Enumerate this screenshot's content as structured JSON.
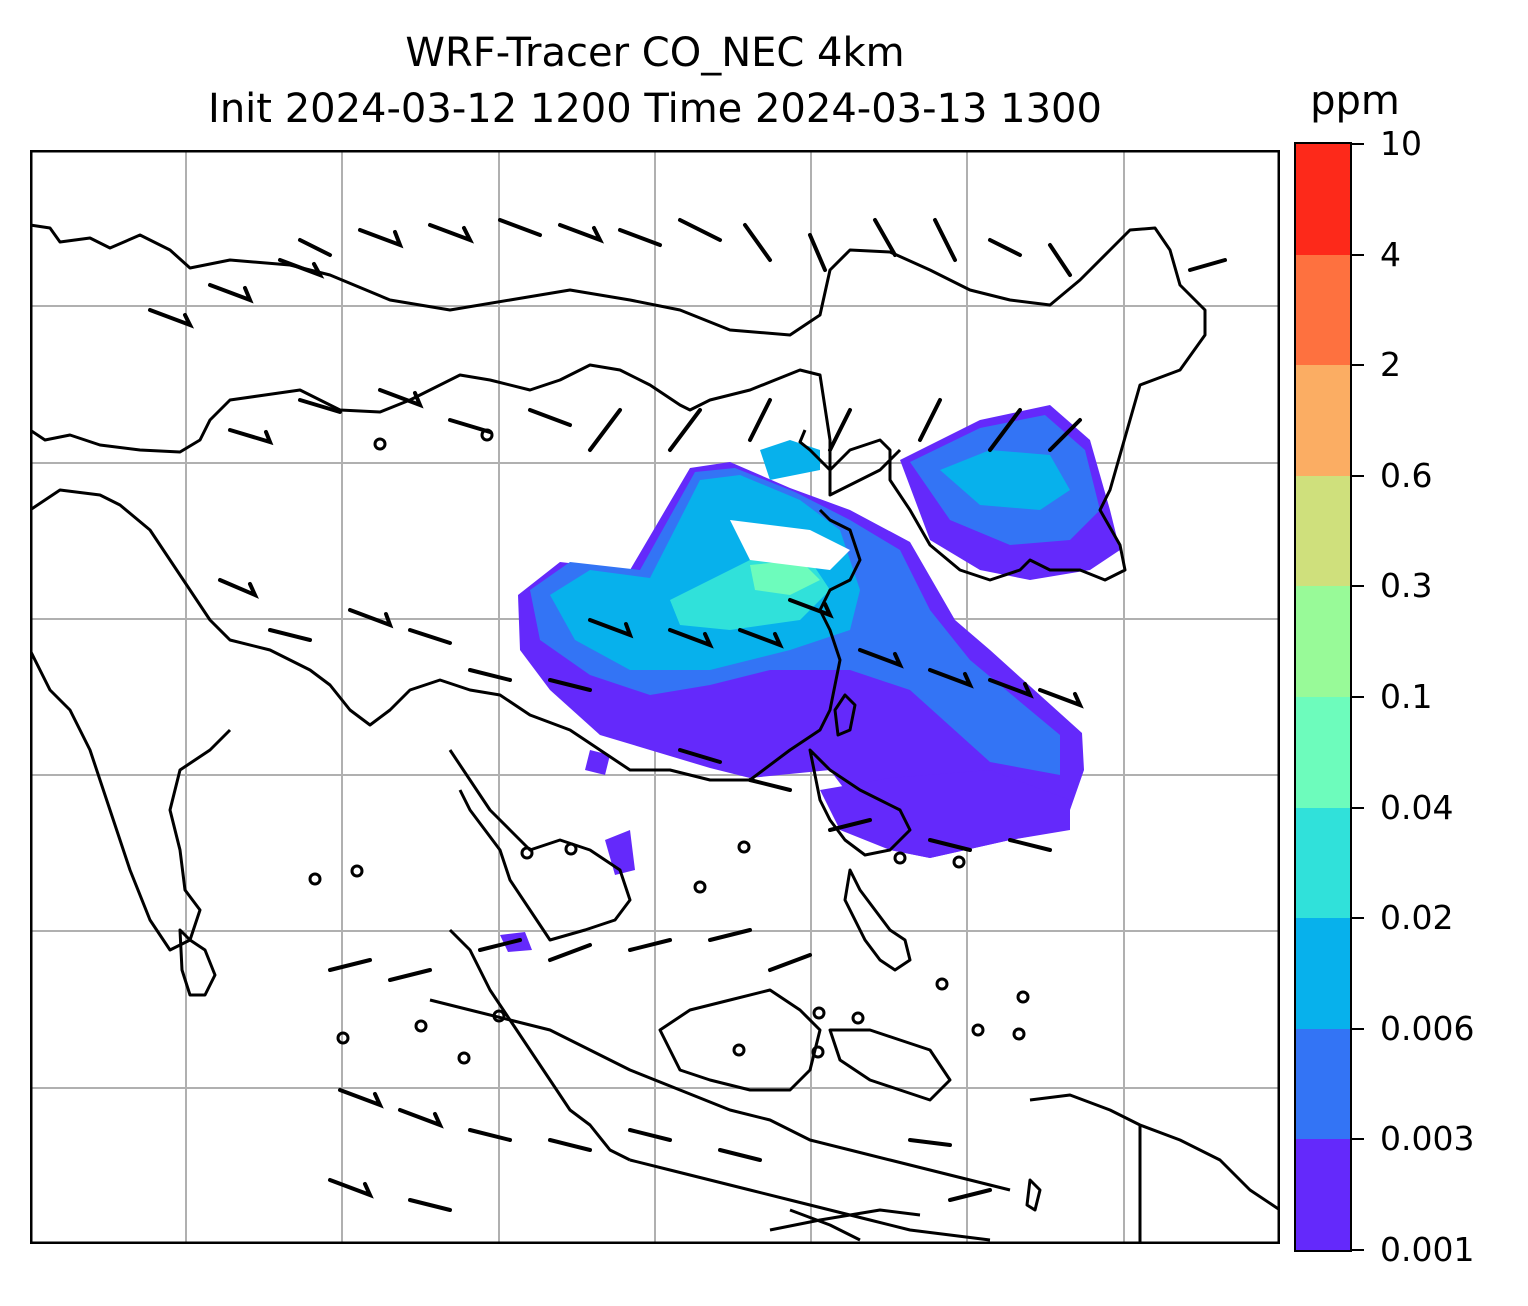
{
  "title_line1": "WRF-Tracer CO_NEC 4km",
  "title_line2": "Init 2024-03-12 1200 Time 2024-03-13 1300",
  "colorbar": {
    "unit": "ppm",
    "levels": [
      "0.001",
      "0.003",
      "0.006",
      "0.02",
      "0.04",
      "0.1",
      "0.3",
      "0.6",
      "2",
      "4",
      "10"
    ],
    "colors": [
      "#6429fb",
      "#3374f5",
      "#07b1ec",
      "#30e1da",
      "#6dfcbc",
      "#98fa98",
      "#cfe07c",
      "#fbad63",
      "#fe713f",
      "#fd291a"
    ]
  },
  "map": {
    "gridlines": true,
    "overlay": "wind barbs",
    "plume_color_levels": [
      "0.001",
      "0.003",
      "0.006",
      "0.02",
      "0.04"
    ]
  }
}
